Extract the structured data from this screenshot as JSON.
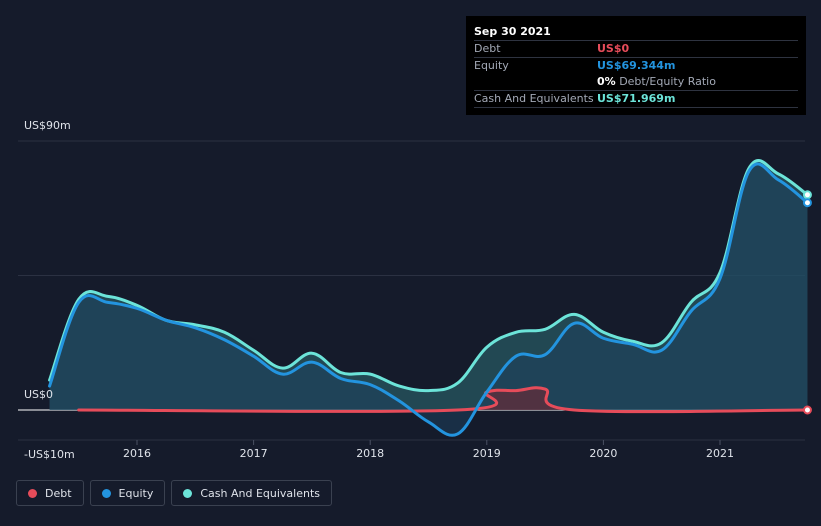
{
  "tooltip": {
    "date": "Sep 30 2021",
    "debt_label": "Debt",
    "debt_value": "US$0",
    "equity_label": "Equity",
    "equity_value": "US$69.344m",
    "ratio_value": "0%",
    "ratio_label": "Debt/Equity Ratio",
    "cash_label": "Cash And Equivalents",
    "cash_value": "US$71.969m"
  },
  "legend": {
    "debt": "Debt",
    "equity": "Equity",
    "cash": "Cash And Equivalents"
  },
  "colors": {
    "debt": "#e64c5a",
    "equity": "#2394df",
    "cash": "#6ce4d9",
    "background": "#151b2b"
  },
  "chart_data": {
    "type": "line",
    "title": "",
    "xlabel": "",
    "ylabel": "",
    "y_tick_labels": [
      "US$90m",
      "US$0",
      "-US$10m"
    ],
    "x_tick_labels": [
      "2016",
      "2017",
      "2018",
      "2019",
      "2020",
      "2021"
    ],
    "ylim": [
      -10,
      90
    ],
    "xlim": [
      2015.2,
      2021.75
    ],
    "grid": true,
    "legend_position": "bottom-left",
    "series": [
      {
        "name": "Cash And Equivalents",
        "points": [
          [
            2015.25,
            10
          ],
          [
            2015.5,
            37
          ],
          [
            2015.75,
            38
          ],
          [
            2016.0,
            35
          ],
          [
            2016.25,
            30
          ],
          [
            2016.5,
            28.5
          ],
          [
            2016.75,
            26
          ],
          [
            2017.0,
            20
          ],
          [
            2017.25,
            14
          ],
          [
            2017.5,
            19
          ],
          [
            2017.75,
            12.5
          ],
          [
            2018.0,
            12
          ],
          [
            2018.25,
            8
          ],
          [
            2018.5,
            6.5
          ],
          [
            2018.75,
            9
          ],
          [
            2019.0,
            21
          ],
          [
            2019.25,
            26
          ],
          [
            2019.5,
            27
          ],
          [
            2019.75,
            32
          ],
          [
            2020.0,
            26
          ],
          [
            2020.25,
            23
          ],
          [
            2020.5,
            22.5
          ],
          [
            2020.75,
            36
          ],
          [
            2021.0,
            46
          ],
          [
            2021.25,
            81
          ],
          [
            2021.5,
            79
          ],
          [
            2021.75,
            72
          ]
        ]
      },
      {
        "name": "Equity",
        "points": [
          [
            2015.25,
            8
          ],
          [
            2015.5,
            36
          ],
          [
            2015.75,
            36
          ],
          [
            2016.0,
            34
          ],
          [
            2016.25,
            30
          ],
          [
            2016.5,
            27.5
          ],
          [
            2016.75,
            23.5
          ],
          [
            2017.0,
            18
          ],
          [
            2017.25,
            12
          ],
          [
            2017.5,
            16
          ],
          [
            2017.75,
            10.5
          ],
          [
            2018.0,
            8.5
          ],
          [
            2018.25,
            3
          ],
          [
            2018.5,
            -4
          ],
          [
            2018.75,
            -8
          ],
          [
            2019.0,
            6
          ],
          [
            2019.25,
            18
          ],
          [
            2019.5,
            18.5
          ],
          [
            2019.75,
            29
          ],
          [
            2020.0,
            24
          ],
          [
            2020.25,
            22
          ],
          [
            2020.5,
            20
          ],
          [
            2020.75,
            33
          ],
          [
            2021.0,
            44
          ],
          [
            2021.25,
            80
          ],
          [
            2021.5,
            77
          ],
          [
            2021.75,
            69.344
          ]
        ]
      },
      {
        "name": "Debt",
        "points": [
          [
            2015.5,
            0
          ],
          [
            2018.75,
            0
          ],
          [
            2019.0,
            6
          ],
          [
            2019.25,
            6.5
          ],
          [
            2019.5,
            7
          ],
          [
            2019.75,
            0
          ],
          [
            2021.75,
            0
          ]
        ]
      }
    ]
  }
}
